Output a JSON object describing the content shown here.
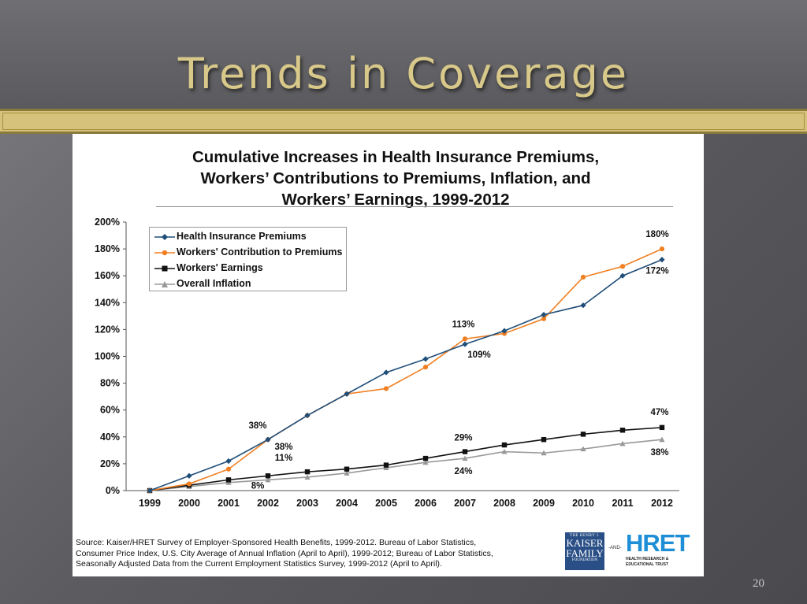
{
  "slide": {
    "title": "Trends in Coverage",
    "page_number": "20"
  },
  "chart": {
    "title_lines": [
      "Cumulative Increases in Health Insurance Premiums,",
      "Workers’ Contributions to Premiums, Inflation, and",
      "Workers’ Earnings, 1999-2012"
    ],
    "source_lines": [
      "Source: Kaiser/HRET Survey of Employer-Sponsored Health Benefits, 1999-2012. Bureau of Labor Statistics,",
      "Consumer Price Index, U.S. City Average of Annual Inflation (April to April), 1999-2012; Bureau of Labor Statistics,",
      "Seasonally Adjusted Data from the Current Employment Statistics Survey, 1999-2012 (April to April)."
    ]
  },
  "logos": {
    "kff_top": "THE HENRY J.",
    "kff_line1": "KAISER",
    "kff_line2": "FAMILY",
    "kff_bottom": "FOUNDATION",
    "and": "-AND-",
    "hret_mark": "HRET",
    "hret_sub1": "HEALTH RESEARCH &",
    "hret_sub2": "EDUCATIONAL TRUST"
  },
  "colors": {
    "premiums": "#1f4e79",
    "contribution": "#f07f21",
    "earnings": "#111111",
    "inflation": "#999999",
    "title_gold": "#d8c88a"
  },
  "chart_data": {
    "type": "line",
    "x": [
      "1999",
      "2000",
      "2001",
      "2002",
      "2003",
      "2004",
      "2005",
      "2006",
      "2007",
      "2008",
      "2009",
      "2010",
      "2011",
      "2012"
    ],
    "ylim": [
      0,
      200
    ],
    "yticks": [
      "0%",
      "20%",
      "40%",
      "60%",
      "80%",
      "100%",
      "120%",
      "140%",
      "160%",
      "180%",
      "200%"
    ],
    "legend_position": "top-left",
    "grid": false,
    "series": [
      {
        "name": "Health Insurance Premiums",
        "color": "#1f4e79",
        "marker": "diamond",
        "values": [
          0,
          11,
          22,
          38,
          56,
          72,
          88,
          98,
          109,
          119,
          131,
          138,
          160,
          172
        ]
      },
      {
        "name": "Workers' Contribution to Premiums",
        "color": "#f07f21",
        "marker": "circle",
        "values": [
          0,
          5,
          16,
          38,
          56,
          72,
          76,
          92,
          113,
          117,
          128,
          159,
          167,
          180
        ]
      },
      {
        "name": "Workers' Earnings",
        "color": "#111111",
        "marker": "square",
        "values": [
          0,
          4,
          8,
          11,
          14,
          16,
          19,
          24,
          29,
          34,
          38,
          42,
          45,
          47
        ]
      },
      {
        "name": "Overall Inflation",
        "color": "#999999",
        "marker": "triangle",
        "values": [
          0,
          3,
          6,
          8,
          10,
          13,
          17,
          21,
          24,
          29,
          28,
          31,
          35,
          38
        ]
      }
    ],
    "annotations": [
      {
        "text": "180%",
        "x": "2012",
        "y": 180,
        "series": "Workers' Contribution to Premiums"
      },
      {
        "text": "172%",
        "x": "2012",
        "y": 172,
        "series": "Health Insurance Premiums"
      },
      {
        "text": "113%",
        "x": "2007",
        "y": 113,
        "series": "Workers' Contribution to Premiums"
      },
      {
        "text": "109%",
        "x": "2007",
        "y": 109,
        "series": "Health Insurance Premiums"
      },
      {
        "text": "38%",
        "x": "2002",
        "y": 38,
        "series": "Workers' Contribution to Premiums"
      },
      {
        "text": "38%",
        "x": "2002",
        "y": 38,
        "series": "Health Insurance Premiums"
      },
      {
        "text": "11%",
        "x": "2002",
        "y": 11,
        "series": "Workers' Earnings"
      },
      {
        "text": "8%",
        "x": "2002",
        "y": 8,
        "series": "Overall Inflation"
      },
      {
        "text": "29%",
        "x": "2007",
        "y": 29,
        "series": "Workers' Earnings"
      },
      {
        "text": "24%",
        "x": "2007",
        "y": 24,
        "series": "Overall Inflation"
      },
      {
        "text": "47%",
        "x": "2012",
        "y": 47,
        "series": "Workers' Earnings"
      },
      {
        "text": "38%",
        "x": "2012",
        "y": 38,
        "series": "Overall Inflation"
      }
    ]
  }
}
